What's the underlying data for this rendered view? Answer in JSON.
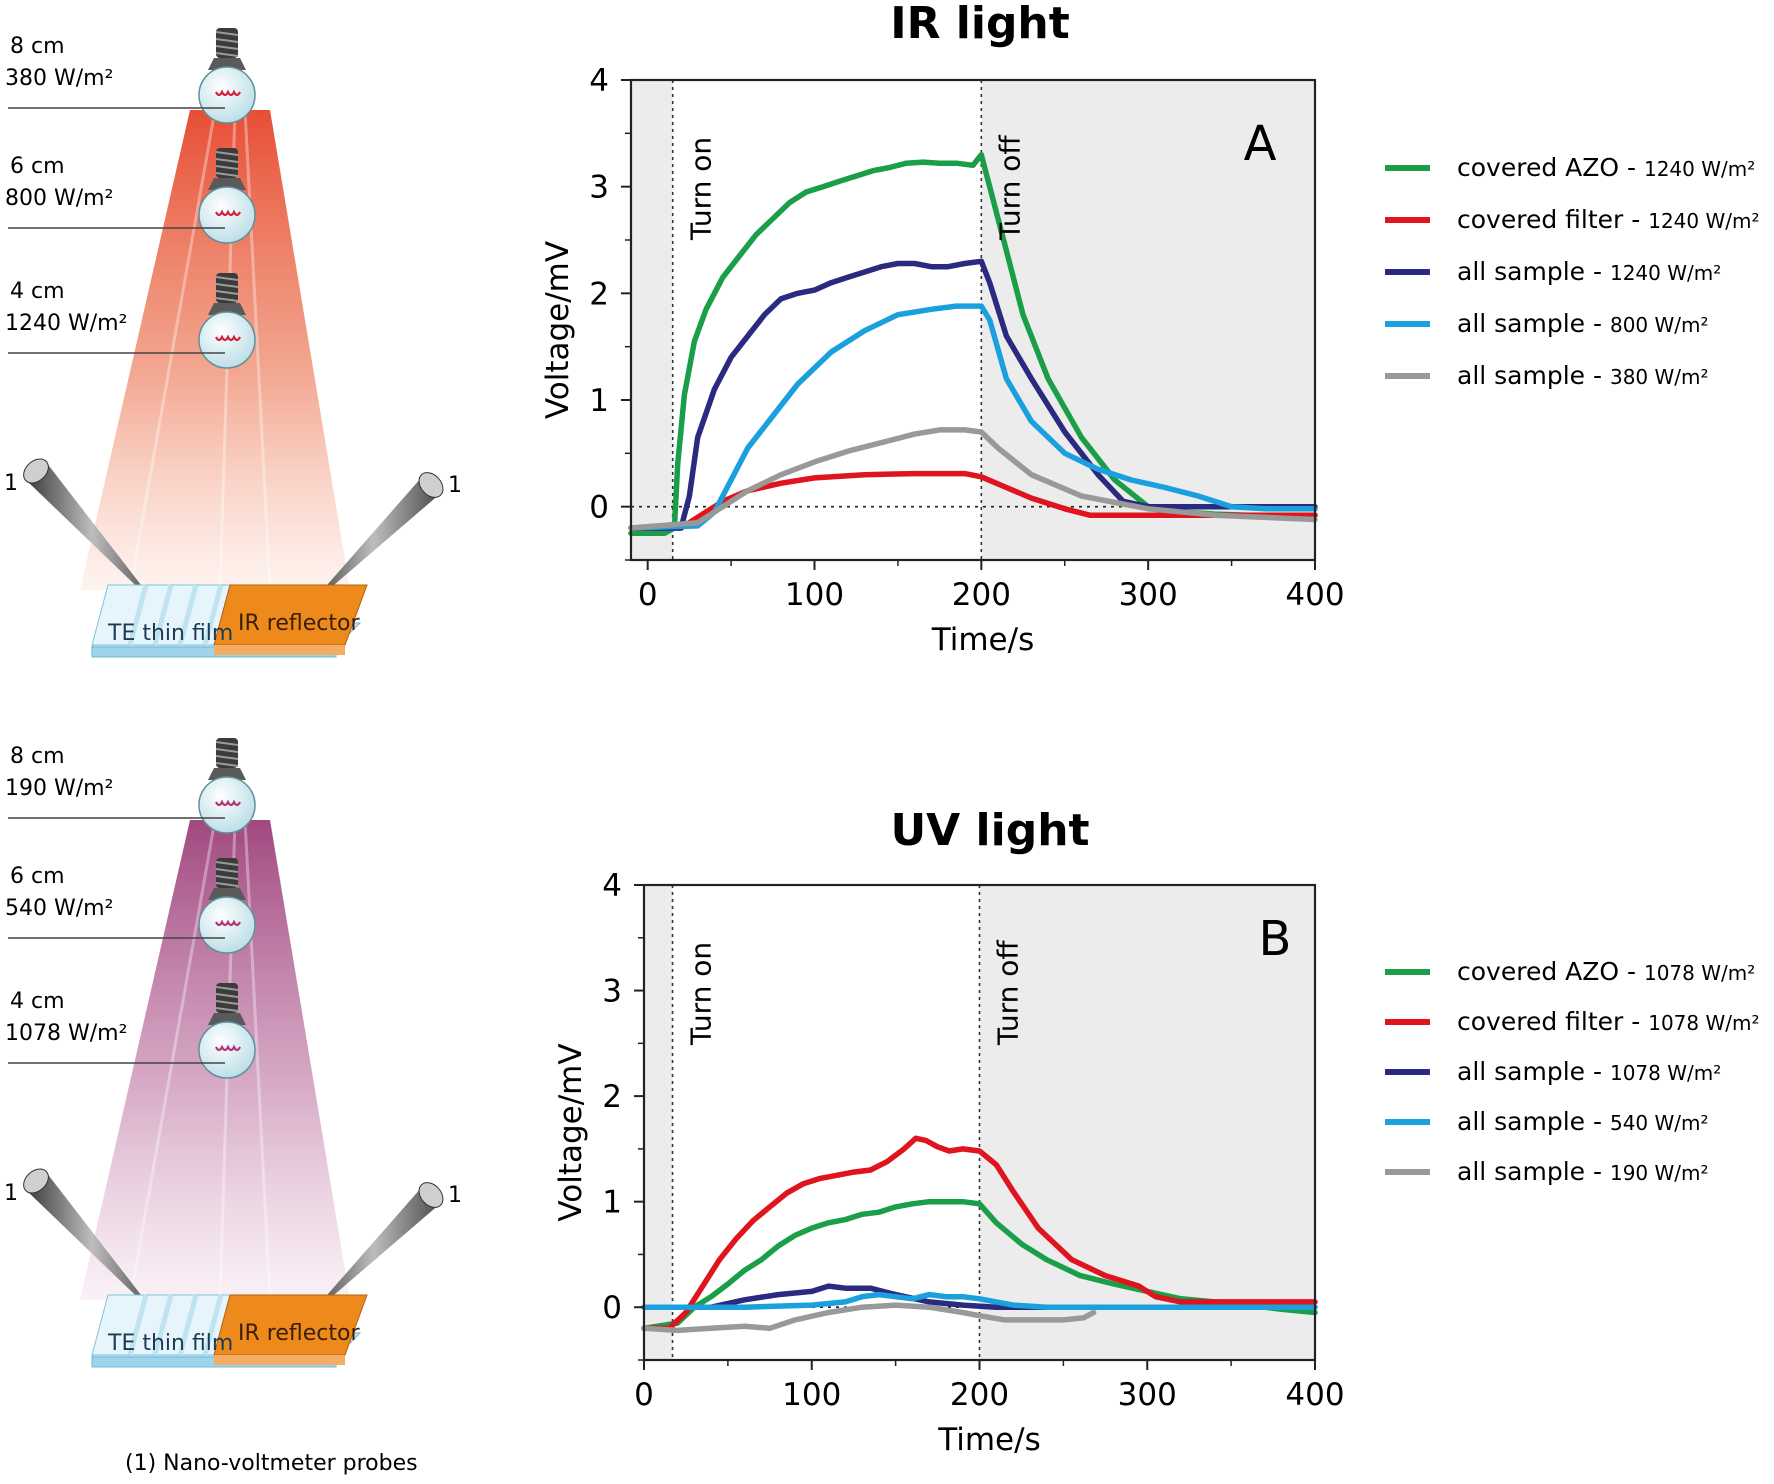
{
  "caption": "(1) Nano-voltmeter probes",
  "sides": [
    {
      "lamps": [
        {
          "distance": "8 cm",
          "irradiance": "380 W/m²"
        },
        {
          "distance": "6 cm",
          "irradiance": "800 W/m²"
        },
        {
          "distance": "4 cm",
          "irradiance": "1240 W/m²"
        }
      ],
      "film_label": "TE thin film",
      "reflector_label": "IR reflector",
      "probe_label": "1",
      "beam_color": "#e5452a"
    },
    {
      "lamps": [
        {
          "distance": "8 cm",
          "irradiance": "190 W/m²"
        },
        {
          "distance": "6 cm",
          "irradiance": "540 W/m²"
        },
        {
          "distance": "4 cm",
          "irradiance": "1078 W/m²"
        }
      ],
      "film_label": "TE thin film",
      "reflector_label": "IR reflector",
      "probe_label": "1",
      "beam_color": "#9c3f78"
    }
  ],
  "chart_data": [
    {
      "type": "line",
      "title": "IR light",
      "panel_label": "A",
      "xlabel": "Time/s",
      "ylabel": "Voltage/mV",
      "xlim": [
        -10,
        400
      ],
      "ylim": [
        -0.5,
        4
      ],
      "xticks": [
        "0",
        "100",
        "200",
        "300",
        "400"
      ],
      "yticks": [
        "0",
        "1",
        "2",
        "3",
        "4"
      ],
      "annotations": {
        "turn_on": "Turn on",
        "turn_off": "Turn off"
      },
      "turn_on_x": 15,
      "turn_off_x": 200,
      "shaded_regions": [
        [
          -10,
          15
        ],
        [
          200,
          400
        ]
      ],
      "legend_position": "right",
      "series": [
        {
          "name": "covered AZO - ",
          "unit": "1240 W/m²",
          "color": "#1b9e48",
          "x": [
            -10,
            10,
            16,
            18,
            22,
            28,
            35,
            45,
            55,
            65,
            75,
            85,
            95,
            105,
            115,
            125,
            135,
            145,
            155,
            165,
            175,
            185,
            195,
            200,
            205,
            215,
            225,
            240,
            260,
            280,
            300,
            320,
            340,
            360,
            380,
            400
          ],
          "y": [
            -0.25,
            -0.25,
            -0.2,
            0.4,
            1.05,
            1.55,
            1.85,
            2.15,
            2.35,
            2.55,
            2.7,
            2.85,
            2.95,
            3.0,
            3.05,
            3.1,
            3.15,
            3.18,
            3.22,
            3.23,
            3.22,
            3.22,
            3.2,
            3.3,
            3.0,
            2.4,
            1.8,
            1.2,
            0.65,
            0.25,
            0.0,
            -0.05,
            -0.07,
            -0.08,
            -0.08,
            -0.08
          ]
        },
        {
          "name": "covered filter - ",
          "unit": "1240 W/m²",
          "color": "#e0141e",
          "x": [
            -10,
            20,
            35,
            45,
            60,
            80,
            100,
            130,
            160,
            190,
            200,
            215,
            230,
            250,
            265,
            300,
            350,
            400
          ],
          "y": [
            -0.2,
            -0.2,
            -0.05,
            0.05,
            0.15,
            0.22,
            0.27,
            0.3,
            0.31,
            0.31,
            0.28,
            0.18,
            0.08,
            -0.02,
            -0.08,
            -0.08,
            -0.08,
            -0.08
          ]
        },
        {
          "name": "all sample - ",
          "unit": "1240 W/m²",
          "color": "#2a2a80",
          "x": [
            -10,
            20,
            25,
            30,
            40,
            50,
            60,
            70,
            80,
            90,
            100,
            110,
            120,
            130,
            140,
            150,
            160,
            170,
            180,
            190,
            200,
            205,
            215,
            230,
            250,
            270,
            285,
            300,
            400
          ],
          "y": [
            -0.2,
            -0.2,
            0.1,
            0.65,
            1.1,
            1.4,
            1.6,
            1.8,
            1.95,
            2.0,
            2.03,
            2.1,
            2.15,
            2.2,
            2.25,
            2.28,
            2.28,
            2.25,
            2.25,
            2.28,
            2.3,
            2.1,
            1.6,
            1.2,
            0.7,
            0.3,
            0.05,
            0.0,
            0.0
          ]
        },
        {
          "name": "all sample - ",
          "unit": "800 W/m²",
          "color": "#1aa0dc",
          "x": [
            -10,
            30,
            40,
            50,
            60,
            75,
            90,
            110,
            130,
            150,
            170,
            185,
            200,
            205,
            215,
            230,
            250,
            270,
            290,
            310,
            330,
            350,
            370,
            400
          ],
          "y": [
            -0.2,
            -0.18,
            -0.05,
            0.25,
            0.55,
            0.85,
            1.15,
            1.45,
            1.65,
            1.8,
            1.85,
            1.88,
            1.88,
            1.75,
            1.2,
            0.8,
            0.5,
            0.35,
            0.25,
            0.18,
            0.1,
            0.0,
            -0.02,
            -0.02
          ]
        },
        {
          "name": "all sample - ",
          "unit": "380 W/m²",
          "color": "#999999",
          "x": [
            -10,
            30,
            45,
            60,
            80,
            100,
            120,
            140,
            160,
            175,
            190,
            200,
            210,
            230,
            260,
            300,
            340,
            400
          ],
          "y": [
            -0.2,
            -0.15,
            0.0,
            0.15,
            0.3,
            0.42,
            0.52,
            0.6,
            0.68,
            0.72,
            0.72,
            0.7,
            0.55,
            0.3,
            0.1,
            -0.02,
            -0.08,
            -0.12
          ]
        }
      ]
    },
    {
      "type": "line",
      "title": "UV light",
      "panel_label": "B",
      "xlabel": "Time/s",
      "ylabel": "Voltage/mV",
      "xlim": [
        0,
        400
      ],
      "ylim": [
        -0.5,
        4
      ],
      "xticks": [
        "0",
        "100",
        "200",
        "300",
        "400"
      ],
      "yticks": [
        "0",
        "1",
        "2",
        "3",
        "4"
      ],
      "annotations": {
        "turn_on": "Turn on",
        "turn_off": "Turn off"
      },
      "turn_on_x": 17,
      "turn_off_x": 200,
      "shaded_regions": [
        [
          0,
          17
        ],
        [
          200,
          400
        ]
      ],
      "legend_position": "right",
      "series": [
        {
          "name": "covered AZO - ",
          "unit": "1078 W/m²",
          "color": "#1b9e48",
          "x": [
            0,
            20,
            30,
            40,
            50,
            60,
            70,
            80,
            90,
            100,
            110,
            120,
            130,
            140,
            150,
            160,
            170,
            180,
            190,
            200,
            210,
            225,
            240,
            260,
            280,
            300,
            320,
            340,
            360,
            380,
            400
          ],
          "y": [
            -0.2,
            -0.15,
            0.0,
            0.1,
            0.22,
            0.35,
            0.45,
            0.58,
            0.68,
            0.75,
            0.8,
            0.83,
            0.88,
            0.9,
            0.95,
            0.98,
            1.0,
            1.0,
            1.0,
            0.98,
            0.8,
            0.6,
            0.45,
            0.3,
            0.22,
            0.15,
            0.08,
            0.05,
            0.02,
            -0.02,
            -0.05
          ]
        },
        {
          "name": "covered filter - ",
          "unit": "1078 W/m²",
          "color": "#e0141e",
          "x": [
            0,
            15,
            25,
            35,
            45,
            55,
            65,
            75,
            85,
            95,
            105,
            115,
            125,
            135,
            145,
            155,
            162,
            168,
            175,
            182,
            190,
            200,
            210,
            220,
            235,
            255,
            275,
            295,
            305,
            320,
            360,
            400
          ],
          "y": [
            -0.2,
            -0.2,
            -0.05,
            0.2,
            0.45,
            0.65,
            0.82,
            0.95,
            1.08,
            1.17,
            1.22,
            1.25,
            1.28,
            1.3,
            1.38,
            1.5,
            1.6,
            1.58,
            1.52,
            1.48,
            1.5,
            1.48,
            1.35,
            1.1,
            0.75,
            0.45,
            0.3,
            0.2,
            0.1,
            0.05,
            0.05,
            0.05
          ]
        },
        {
          "name": "all sample - ",
          "unit": "1078 W/m²",
          "color": "#2a2a80",
          "x": [
            0,
            40,
            60,
            80,
            100,
            110,
            120,
            135,
            150,
            170,
            190,
            210,
            250,
            300,
            400
          ],
          "y": [
            0.0,
            0.0,
            0.07,
            0.12,
            0.15,
            0.2,
            0.18,
            0.18,
            0.12,
            0.05,
            0.02,
            0.0,
            0.0,
            0.0,
            0.0
          ]
        },
        {
          "name": "all sample - ",
          "unit": "540 W/m²",
          "color": "#1aa0dc",
          "x": [
            0,
            60,
            100,
            120,
            130,
            140,
            150,
            160,
            170,
            180,
            190,
            200,
            210,
            220,
            240,
            300,
            400
          ],
          "y": [
            0.0,
            0.0,
            0.02,
            0.05,
            0.1,
            0.12,
            0.1,
            0.08,
            0.12,
            0.1,
            0.1,
            0.08,
            0.05,
            0.02,
            0.0,
            0.0,
            0.0
          ]
        },
        {
          "name": "all sample - ",
          "unit": "190 W/m²",
          "color": "#999999",
          "x": [
            0,
            20,
            40,
            60,
            75,
            90,
            110,
            130,
            150,
            170,
            190,
            200,
            215,
            230,
            250,
            262,
            268
          ],
          "y": [
            -0.2,
            -0.22,
            -0.2,
            -0.18,
            -0.2,
            -0.12,
            -0.05,
            0.0,
            0.02,
            0.0,
            -0.05,
            -0.08,
            -0.12,
            -0.12,
            -0.12,
            -0.1,
            -0.05
          ]
        }
      ]
    }
  ]
}
